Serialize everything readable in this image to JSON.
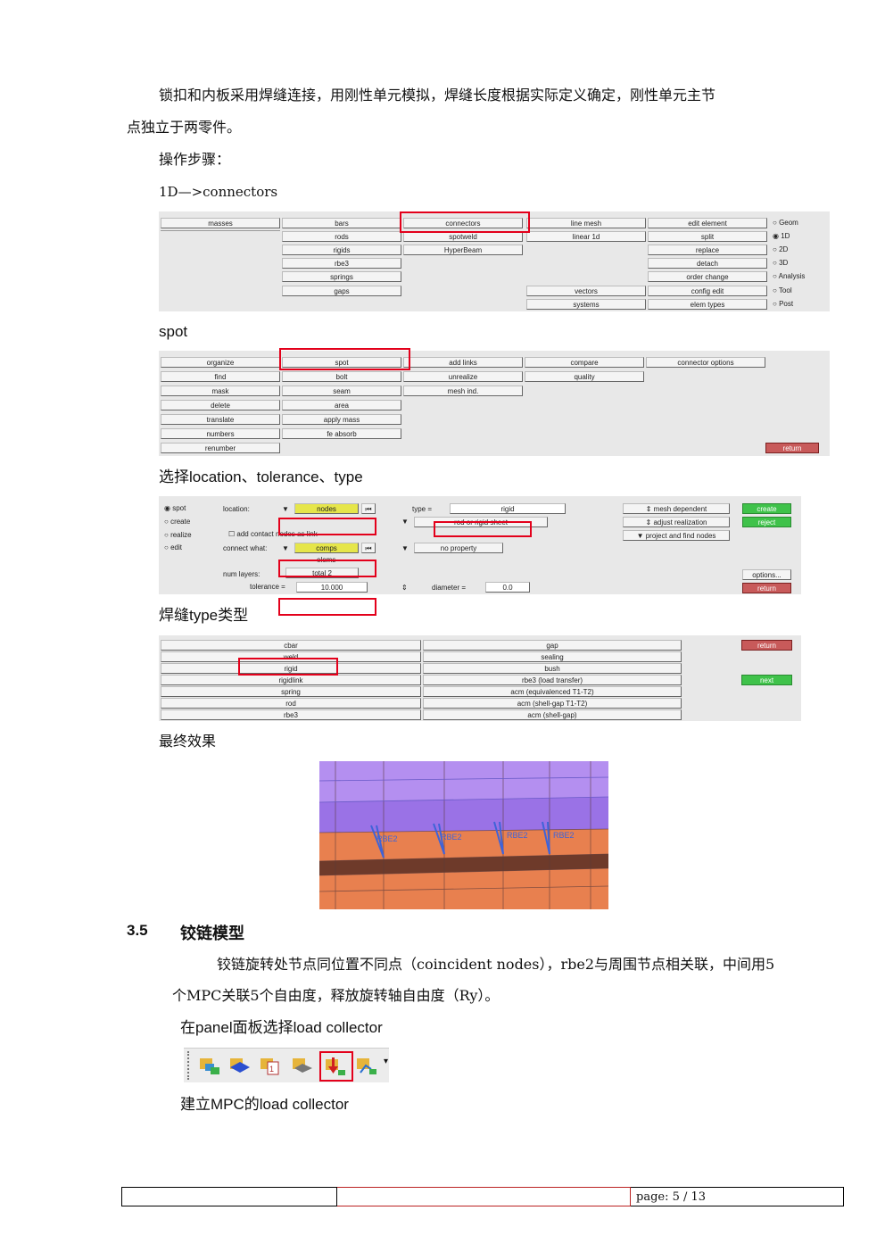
{
  "body": {
    "para1_line1": "锁扣和内板采用焊缝连接，用刚性单元模拟，焊缝长度根据实际定义确定，刚性单元主节",
    "para1_line2": "点独立于两零件。",
    "steps_label": "操作步骤：",
    "path_label": "1D—>connectors",
    "spot_label": "spot",
    "select_label": "选择location、tolerance、type",
    "weld_type_label": "焊缝type类型",
    "final_label": "最终效果"
  },
  "panel1": {
    "col1": [
      "masses"
    ],
    "col2": [
      "bars",
      "rods",
      "rigids",
      "rbe3",
      "springs",
      "gaps"
    ],
    "col3": [
      "connectors",
      "spotweld",
      "HyperBeam"
    ],
    "col4": [
      "line mesh",
      "linear 1d",
      "",
      "",
      "",
      "vectors",
      "systems"
    ],
    "col5": [
      "edit element",
      "split",
      "replace",
      "detach",
      "order change",
      "config edit",
      "elem types"
    ],
    "radios": [
      "Geom",
      "1D",
      "2D",
      "3D",
      "Analysis",
      "Tool",
      "Post"
    ]
  },
  "panel2": {
    "col1": [
      "organize",
      "find",
      "mask",
      "delete",
      "translate",
      "numbers",
      "renumber"
    ],
    "col2": [
      "spot",
      "bolt",
      "seam",
      "area",
      "apply mass",
      "fe absorb"
    ],
    "col3": [
      "add links",
      "unrealize",
      "mesh ind."
    ],
    "col4": [
      "compare",
      "quality"
    ],
    "col5": [
      "connector options"
    ],
    "return": "return"
  },
  "panel3": {
    "radios": [
      "spot",
      "create",
      "realize",
      "edit"
    ],
    "location_label": "location:",
    "location_value": "nodes",
    "add_option": "add contact nodes as link",
    "connect_label": "connect what:",
    "connect_value": "comps",
    "elems": "elems",
    "num_layers_label": "num layers:",
    "num_layers_value": "total 2",
    "tolerance_label": "tolerance =",
    "tolerance_value": "10.000",
    "type_label": "type =",
    "type_value": "rigid",
    "mid_value": "rod or rigid sheet",
    "property": "no property",
    "diameter_label": "diameter =",
    "diameter_value": "0.0",
    "right_opts": [
      "mesh dependent",
      "adjust realization",
      "project and find nodes"
    ],
    "create": "create",
    "reject": "reject",
    "options": "options...",
    "return": "return"
  },
  "panel4": {
    "left": [
      "cbar",
      "weld",
      "rigid",
      "rigidlink",
      "spring",
      "rod",
      "rbe3"
    ],
    "right": [
      "gap",
      "sealing",
      "bush",
      "rbe3 (load transfer)",
      "acm (equivalenced T1-T2)",
      "acm (shell-gap T1-T2)",
      "acm (shell-gap)"
    ],
    "return": "return",
    "next": "next"
  },
  "render": {
    "labels": [
      "RBE2",
      "RBE2",
      "RBE2",
      "RBE2"
    ]
  },
  "section": {
    "number": "3.5",
    "title": "铰链模型",
    "para_line1": "铰链旋转处节点同位置不同点（coincident nodes），rbe2与周围节点相关联，中间用5",
    "para_line2": "个MPC关联5个自由度，释放旋转轴自由度（Ry）。",
    "panel_label": "在panel面板选择load collector",
    "mpc_label": "建立MPC的load collector"
  },
  "footer": {
    "cell1": "",
    "cell2": "",
    "page": "page: 5 / 13"
  }
}
